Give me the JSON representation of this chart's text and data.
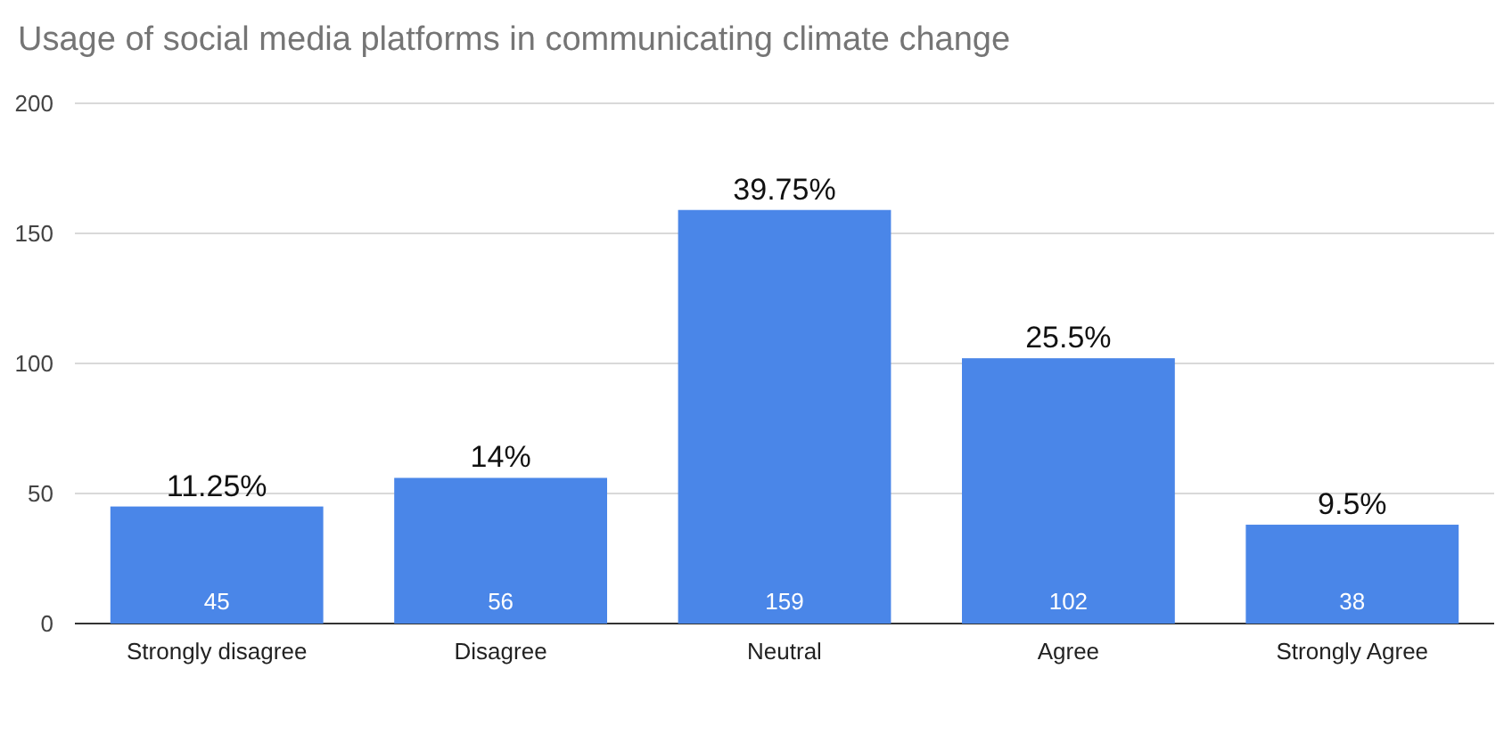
{
  "chart_data": {
    "type": "bar",
    "title": "Usage of social media platforms in communicating climate change",
    "categories": [
      "Strongly disagree",
      "Disagree",
      "Neutral",
      "Agree",
      "Strongly Agree"
    ],
    "values": [
      45,
      56,
      159,
      102,
      38
    ],
    "color": "#4a86e8",
    "ylim": [
      0,
      200
    ],
    "yticks": [
      0,
      50,
      100,
      150,
      200
    ],
    "grid": "y",
    "data_labels": true,
    "annotations": [
      {
        "text": "11.25%",
        "x": "Strongly disagree",
        "y": 45
      },
      {
        "text": "14%",
        "x": "Disagree",
        "y": 56
      },
      {
        "text": "39.75%",
        "x": "Neutral",
        "y": 159
      },
      {
        "text": "25.5%",
        "x": "Agree",
        "y": 102
      },
      {
        "text": "9.5%",
        "x": "Strongly Agree",
        "y": 38
      }
    ]
  }
}
